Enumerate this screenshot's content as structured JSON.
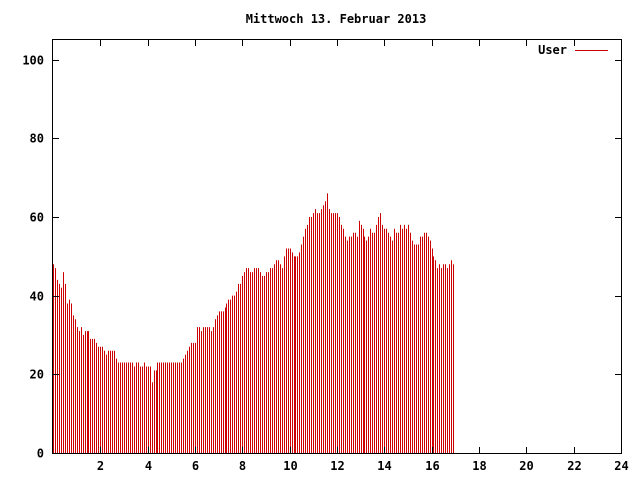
{
  "chart_data": {
    "type": "bar",
    "title": "Mittwoch 13. Februar 2013",
    "xlabel": "",
    "ylabel": "",
    "xlim": [
      0,
      24
    ],
    "ylim": [
      0,
      105
    ],
    "x_ticks": [
      2,
      4,
      6,
      8,
      10,
      12,
      14,
      16,
      18,
      20,
      22,
      24
    ],
    "y_ticks": [
      0,
      20,
      40,
      60,
      80,
      100
    ],
    "grid": false,
    "legend_position": "top-right",
    "bar_color": "#cc0000",
    "series": [
      {
        "name": "User",
        "x_start": 0,
        "x_step": 0.0833,
        "values": [
          48,
          47,
          44,
          43,
          42,
          46,
          43,
          38,
          39,
          38,
          35,
          34,
          32,
          31,
          32,
          30,
          31,
          31,
          31,
          29,
          29,
          29,
          28,
          27,
          27,
          27,
          26,
          25,
          26,
          26,
          26,
          26,
          24,
          23,
          23,
          23,
          23,
          23,
          23,
          23,
          23,
          22,
          23,
          23,
          22,
          22,
          23,
          22,
          22,
          22,
          18,
          21,
          21,
          23,
          23,
          23,
          23,
          23,
          23,
          23,
          23,
          23,
          23,
          23,
          23,
          23,
          24,
          25,
          26,
          27,
          28,
          28,
          28,
          32,
          32,
          31,
          32,
          32,
          32,
          32,
          31,
          32,
          34,
          35,
          36,
          36,
          36,
          37,
          38,
          39,
          39,
          40,
          40,
          41,
          43,
          43,
          45,
          46,
          47,
          47,
          46,
          46,
          47,
          47,
          47,
          46,
          45,
          45,
          46,
          46,
          47,
          47,
          48,
          49,
          49,
          48,
          47,
          50,
          52,
          52,
          52,
          51,
          50,
          50,
          50,
          51,
          53,
          55,
          57,
          58,
          60,
          60,
          61,
          62,
          61,
          61,
          62,
          63,
          64,
          66,
          62,
          61,
          61,
          61,
          61,
          60,
          58,
          57,
          55,
          54,
          55,
          55,
          56,
          56,
          55,
          59,
          58,
          57,
          55,
          54,
          55,
          57,
          56,
          56,
          58,
          60,
          61,
          58,
          57,
          57,
          56,
          55,
          54,
          57,
          56,
          56,
          58,
          57,
          58,
          57,
          58,
          56,
          54,
          53,
          53,
          53,
          55,
          55,
          56,
          56,
          55,
          54,
          52,
          50,
          49,
          47,
          48,
          47,
          48,
          48,
          47,
          48,
          49,
          48
        ]
      }
    ]
  }
}
